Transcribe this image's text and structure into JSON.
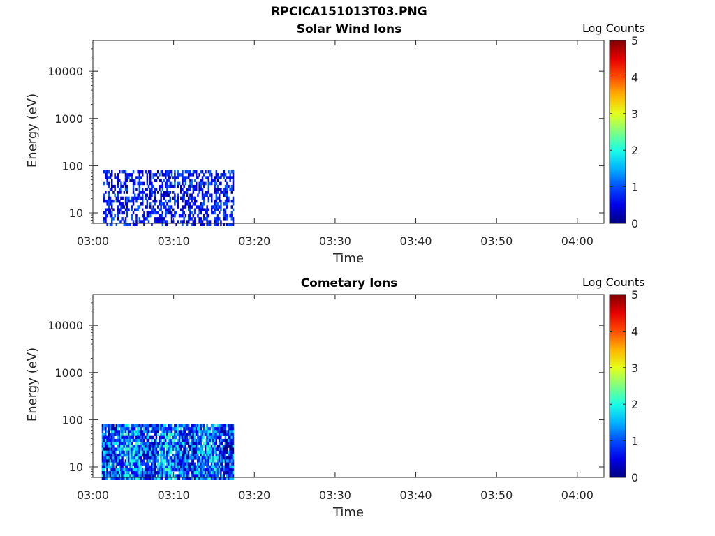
{
  "figure": {
    "title": "RPCICA151013T03.PNG"
  },
  "chart_data": [
    {
      "type": "heatmap",
      "title": "Solar Wind Ions",
      "xlabel": "Time",
      "ylabel": "Energy (eV)",
      "x_ticks": [
        "03:00",
        "03:10",
        "03:20",
        "03:30",
        "03:40",
        "03:50",
        "04:00"
      ],
      "xlim_minutes": [
        0,
        63.3
      ],
      "y_scale": "log",
      "y_ticks": [
        "10",
        "100",
        "1000",
        "10000"
      ],
      "ylim": [
        6,
        45000
      ],
      "data_extent": {
        "start_minute": 1.3,
        "end_minute": 17.4,
        "energy_min": 6,
        "energy_max": 80
      },
      "pattern": "sparse",
      "colorbar": {
        "label": "Log Counts",
        "min": 0,
        "max": 5,
        "ticks": [
          "0",
          "1",
          "2",
          "3",
          "4",
          "5"
        ],
        "colormap": "jet"
      }
    },
    {
      "type": "heatmap",
      "title": "Cometary Ions",
      "xlabel": "Time",
      "ylabel": "Energy (eV)",
      "x_ticks": [
        "03:00",
        "03:10",
        "03:20",
        "03:30",
        "03:40",
        "03:50",
        "04:00"
      ],
      "xlim_minutes": [
        0,
        63.3
      ],
      "y_scale": "log",
      "y_ticks": [
        "10",
        "100",
        "1000",
        "10000"
      ],
      "ylim": [
        6,
        45000
      ],
      "data_extent": {
        "start_minute": 1.1,
        "end_minute": 17.4,
        "energy_min": 6,
        "energy_max": 80
      },
      "pattern": "dense",
      "colorbar": {
        "label": "Log Counts",
        "min": 0,
        "max": 5,
        "ticks": [
          "0",
          "1",
          "2",
          "3",
          "4",
          "5"
        ],
        "colormap": "jet"
      }
    }
  ]
}
